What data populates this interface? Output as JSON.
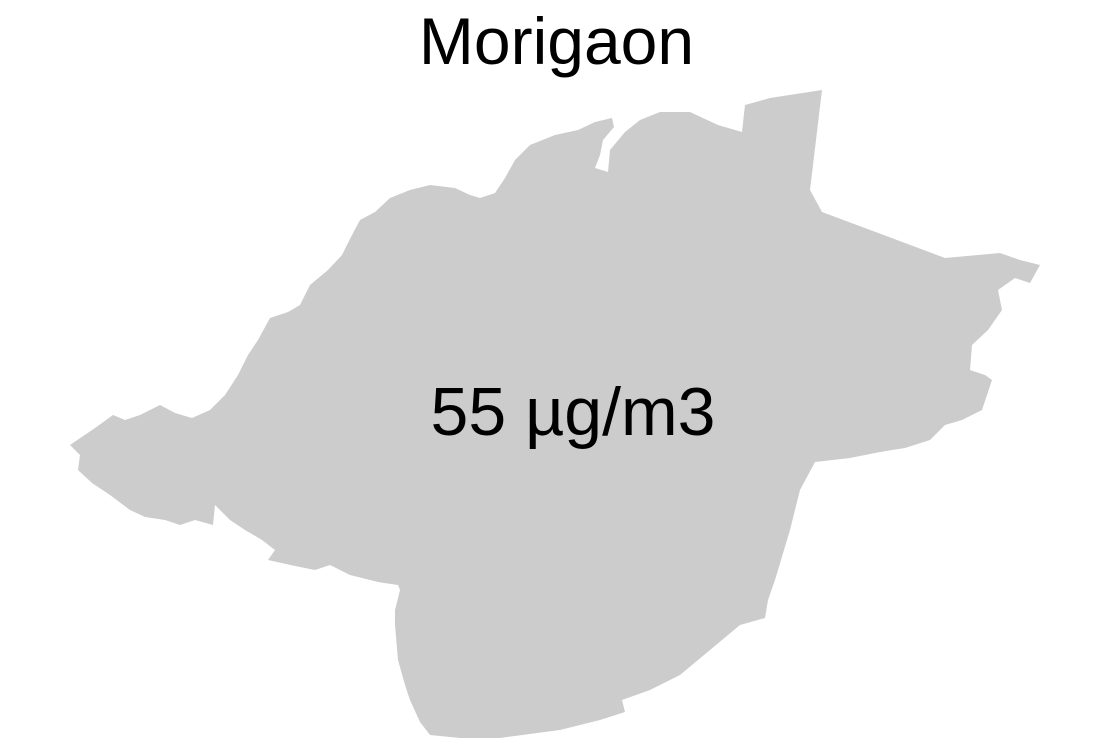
{
  "map": {
    "title": "Morigaon",
    "value_label": "55 µg/m3",
    "colors": {
      "region_fill": "#cccccc",
      "background": "#ffffff",
      "text": "#000000"
    }
  }
}
